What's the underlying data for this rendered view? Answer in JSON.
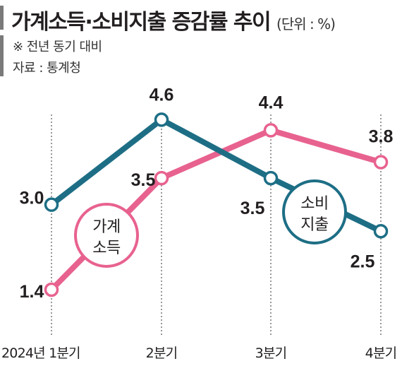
{
  "header": {
    "title": "가계소득·소비지출 증감률 추이",
    "unit": "(단위 : %)",
    "note": "※ 전년 동기 대비",
    "source": "자료 : 통계청"
  },
  "colors": {
    "income": "#e8628f",
    "spending": "#1d6e85",
    "guide": "#555555",
    "accent_bar": "#7a7a7a"
  },
  "chart_data": {
    "type": "line",
    "title": "가계소득·소비지출 증감률 추이",
    "unit": "(단위 : %)",
    "categories": [
      "2024년 1분기",
      "2분기",
      "3분기",
      "4분기"
    ],
    "series": [
      {
        "name": "가계소득",
        "color": "#e8628f",
        "values": [
          1.4,
          3.5,
          4.4,
          3.8
        ]
      },
      {
        "name": "소비지출",
        "color": "#1d6e85",
        "values": [
          3.0,
          4.6,
          3.5,
          2.5
        ]
      }
    ],
    "bubble_labels": [
      {
        "series": "가계소득",
        "lines": [
          "가계",
          "소득"
        ]
      },
      {
        "series": "소비지출",
        "lines": [
          "소비",
          "지출"
        ]
      }
    ],
    "data_labels": [
      {
        "series": "가계소득",
        "labels": [
          "1.4",
          "3.5",
          "4.4",
          "3.8"
        ]
      },
      {
        "series": "소비지출",
        "labels": [
          "3.0",
          "4.6",
          "3.5",
          "2.5"
        ]
      }
    ],
    "xlabel": "",
    "ylabel": "",
    "grid": "vertical dotted guides"
  }
}
